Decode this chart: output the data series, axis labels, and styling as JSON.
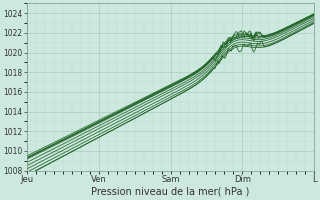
{
  "xlabel": "Pression niveau de la mer( hPa )",
  "bg_color": "#cce8df",
  "plot_bg_color": "#cce8df",
  "grid_major_color": "#aaccbb",
  "grid_minor_color": "#bbddd0",
  "line_color": "#1a5e20",
  "ylim": [
    1008,
    1025
  ],
  "yticks": [
    1008,
    1010,
    1012,
    1014,
    1016,
    1018,
    1020,
    1022,
    1024
  ],
  "xtick_labels": [
    "Jeu",
    "Ven",
    "Sam",
    "Dim",
    "L"
  ],
  "xtick_positions": [
    0,
    0.25,
    0.5,
    0.75,
    1.0
  ],
  "figsize": [
    3.2,
    2.0
  ],
  "dpi": 100
}
